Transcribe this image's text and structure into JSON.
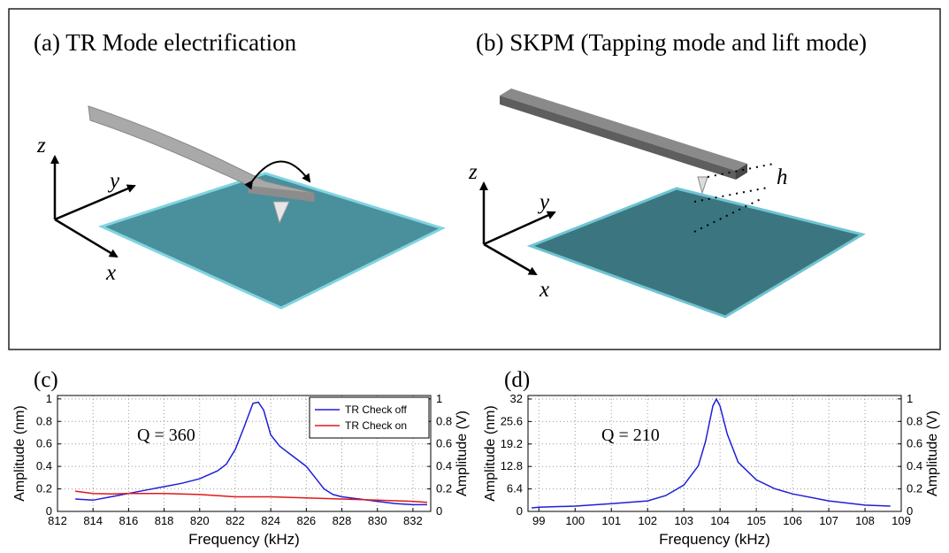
{
  "illustrations": {
    "panel_a": {
      "title": "(a)  TR Mode electrification",
      "axis_z": "z",
      "axis_y": "y",
      "axis_x": "x"
    },
    "panel_b": {
      "title": "(b)   SKPM (Tapping mode and lift mode)",
      "axis_z": "z",
      "axis_y": "y",
      "axis_x": "x",
      "height_label": "h"
    }
  },
  "chart_data": [
    {
      "type": "line",
      "panel_label": "(c)",
      "annotation": "Q = 360",
      "xlabel": "Frequency (kHz)",
      "ylabel": "Amplitude (nm)",
      "y2label": "Amplitude (V)",
      "xlim": [
        812,
        833
      ],
      "xticks": [
        812,
        814,
        816,
        818,
        820,
        822,
        824,
        826,
        828,
        830,
        832
      ],
      "ylim": [
        0,
        1.03
      ],
      "yticks": [
        0,
        0.2,
        0.4,
        0.6,
        0.8,
        1
      ],
      "y2lim": [
        0,
        1.03
      ],
      "y2ticks": [
        0,
        0.2,
        0.4,
        0.6,
        0.8,
        1
      ],
      "grid": true,
      "legend": "upper right",
      "series": [
        {
          "name": "TR Check off",
          "color": "#1f1fd8",
          "x": [
            813,
            814,
            815,
            816,
            817,
            818,
            819,
            820,
            821,
            821.5,
            822,
            822.5,
            823,
            823.3,
            823.6,
            824,
            824.5,
            825,
            825.5,
            826,
            826.5,
            827,
            827.5,
            828,
            829,
            830,
            831,
            832,
            832.8
          ],
          "values": [
            0.11,
            0.1,
            0.13,
            0.16,
            0.19,
            0.22,
            0.25,
            0.29,
            0.36,
            0.42,
            0.55,
            0.75,
            0.96,
            0.97,
            0.9,
            0.68,
            0.58,
            0.52,
            0.46,
            0.4,
            0.3,
            0.2,
            0.15,
            0.13,
            0.11,
            0.09,
            0.07,
            0.06,
            0.06
          ]
        },
        {
          "name": "TR Check on",
          "color": "#e01818",
          "x": [
            813,
            814,
            815,
            816,
            818,
            820,
            822,
            824,
            826,
            828,
            830,
            832,
            832.8
          ],
          "values": [
            0.18,
            0.16,
            0.155,
            0.16,
            0.16,
            0.15,
            0.13,
            0.13,
            0.12,
            0.11,
            0.1,
            0.09,
            0.08
          ]
        }
      ]
    },
    {
      "type": "line",
      "panel_label": "(d)",
      "annotation": "Q = 210",
      "xlabel": "Frequency (kHz)",
      "ylabel": "Amplitude (nm)",
      "y2label": "Amplitude (V)",
      "xlim": [
        98.7,
        109
      ],
      "xticks": [
        99,
        100,
        101,
        102,
        103,
        104,
        105,
        106,
        107,
        108,
        109
      ],
      "ylim": [
        0,
        33
      ],
      "yticks": [
        0,
        6.4,
        12.8,
        19.2,
        25.6,
        32
      ],
      "y2lim": [
        0,
        1.03
      ],
      "y2ticks": [
        0,
        0.2,
        0.4,
        0.6,
        0.8,
        1
      ],
      "grid": true,
      "series": [
        {
          "color": "#1f1fd8",
          "x": [
            98.8,
            99,
            100,
            101,
            102,
            102.5,
            103,
            103.4,
            103.6,
            103.8,
            103.9,
            104,
            104.2,
            104.5,
            105,
            105.5,
            106,
            107,
            108,
            108.7
          ],
          "values": [
            1,
            1.2,
            1.5,
            2.2,
            3,
            4.5,
            7.5,
            13,
            20,
            30,
            32,
            30,
            22,
            14,
            9,
            6.5,
            5,
            3,
            1.8,
            1.5
          ]
        }
      ]
    }
  ]
}
